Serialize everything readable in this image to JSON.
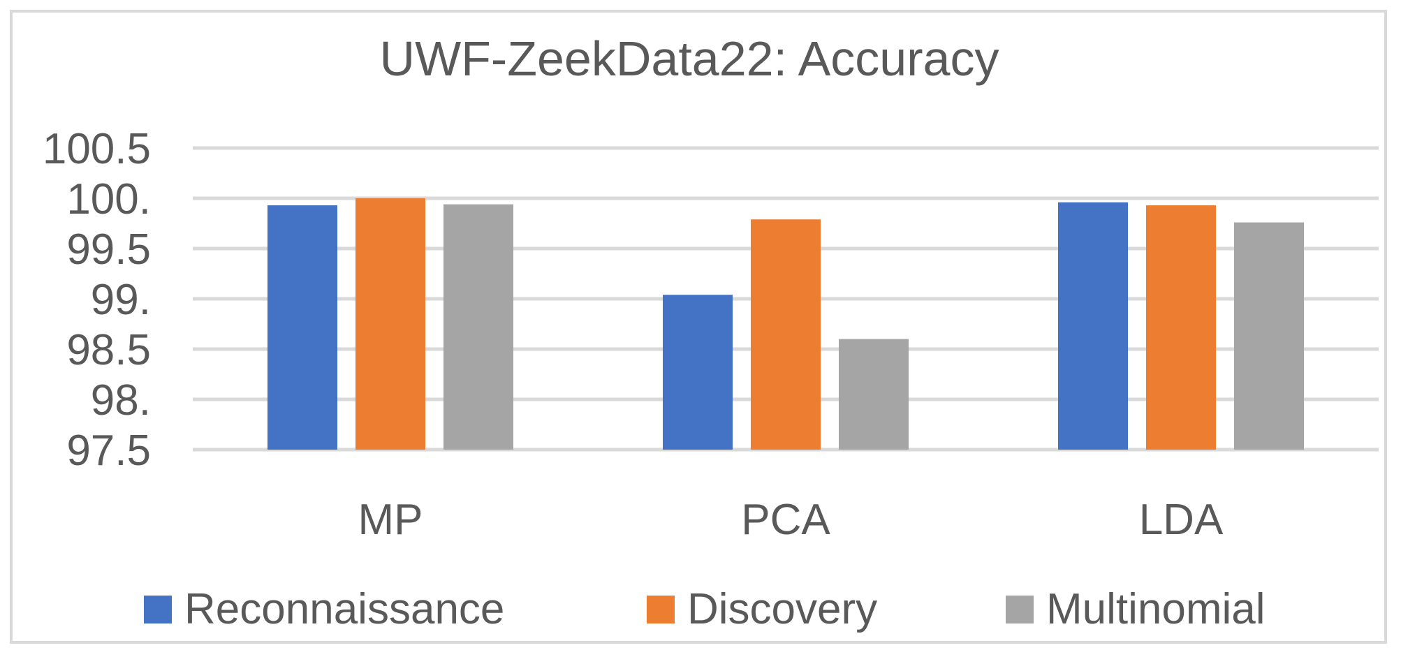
{
  "chart_data": {
    "type": "bar",
    "title": "UWF-ZeekData22: Accuracy",
    "categories": [
      "MP",
      "PCA",
      "LDA"
    ],
    "series": [
      {
        "name": "Reconnaissance",
        "color": "#4472c4",
        "values": [
          99.93,
          99.04,
          99.96
        ]
      },
      {
        "name": "Discovery",
        "color": "#ed7d31",
        "values": [
          100.0,
          99.79,
          99.93
        ]
      },
      {
        "name": "Multinomial",
        "color": "#a5a5a5",
        "values": [
          99.94,
          98.6,
          99.76
        ]
      }
    ],
    "ylim": [
      97.5,
      100.5
    ],
    "yticks": [
      100.5,
      100.0,
      99.5,
      99.0,
      98.5,
      98.0,
      97.5
    ],
    "ytick_labels": [
      "100.5",
      "100.",
      "99.5",
      "99.",
      "98.5",
      "98.",
      "97.5"
    ],
    "grid": true,
    "legend_position": "bottom",
    "xlabel": "",
    "ylabel": ""
  }
}
